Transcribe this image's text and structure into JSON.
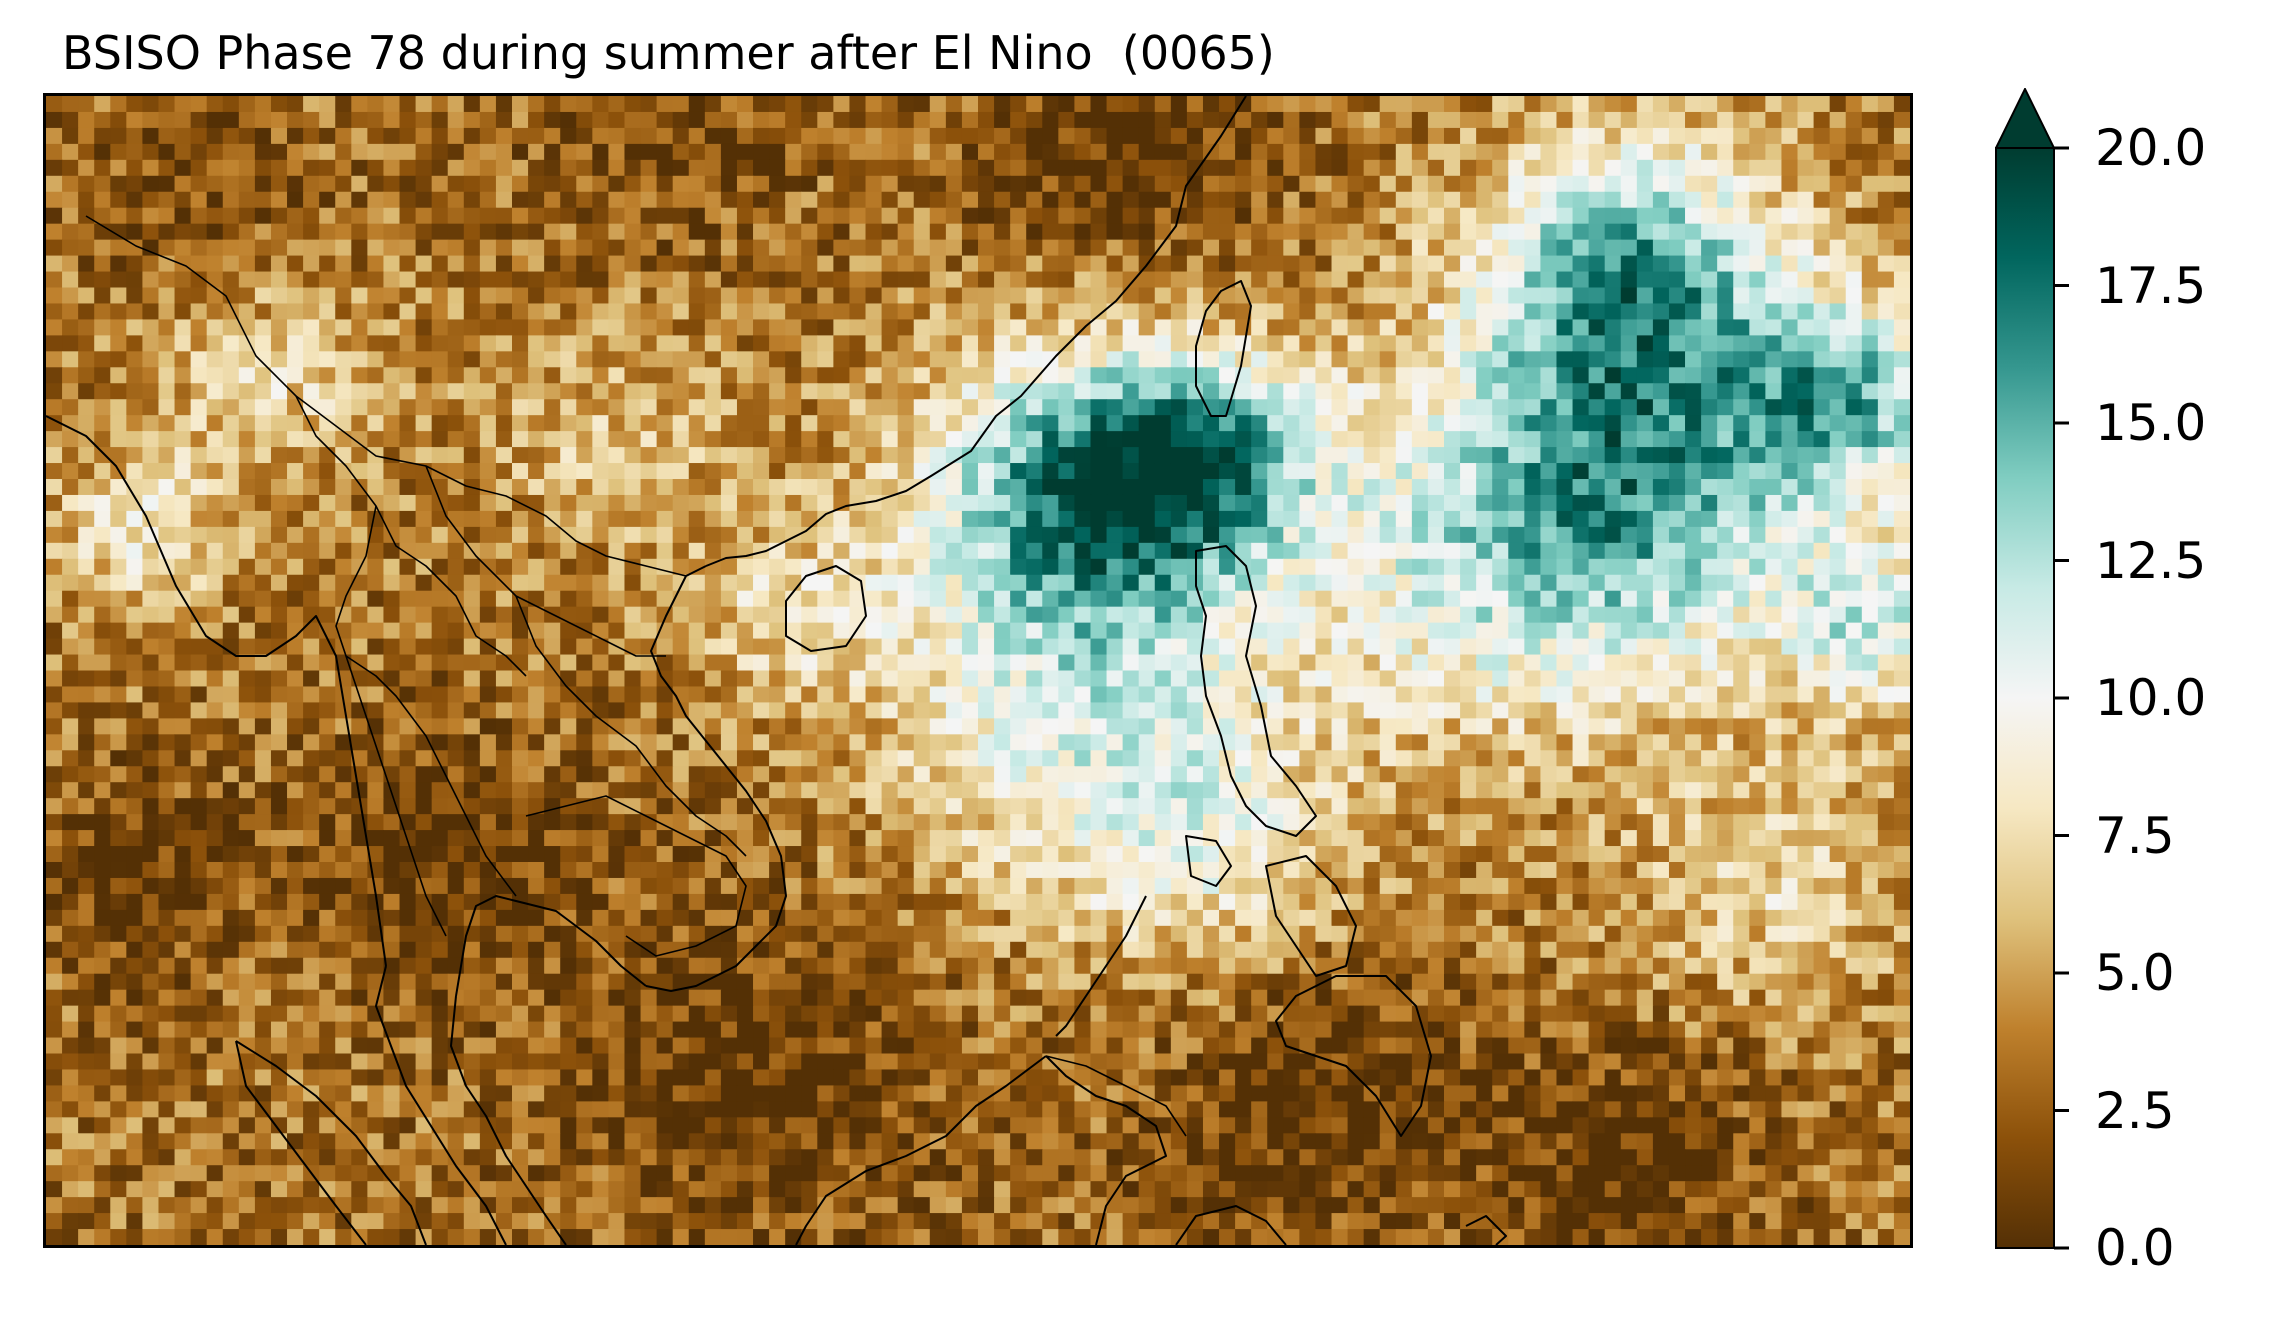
{
  "title": "BSISO Phase 78 during summer after El Nino  (0065)",
  "colormap": {
    "name": "BrBG",
    "stops": [
      "#543005",
      "#8c510a",
      "#bf812d",
      "#dfc27d",
      "#f6e8c3",
      "#f5f5f5",
      "#c7eae5",
      "#80cdc1",
      "#35978f",
      "#01665e",
      "#003c30"
    ]
  },
  "colorbar": {
    "min": 0.0,
    "max": 20.0,
    "extend": "max",
    "ticks": [
      {
        "value": 0.0,
        "label": "0.0"
      },
      {
        "value": 2.5,
        "label": "2.5"
      },
      {
        "value": 5.0,
        "label": "5.0"
      },
      {
        "value": 7.5,
        "label": "7.5"
      },
      {
        "value": 10.0,
        "label": "10.0"
      },
      {
        "value": 12.5,
        "label": "12.5"
      },
      {
        "value": 15.0,
        "label": "15.0"
      },
      {
        "value": 17.5,
        "label": "17.5"
      },
      {
        "value": 20.0,
        "label": "20.0"
      }
    ]
  }
}
